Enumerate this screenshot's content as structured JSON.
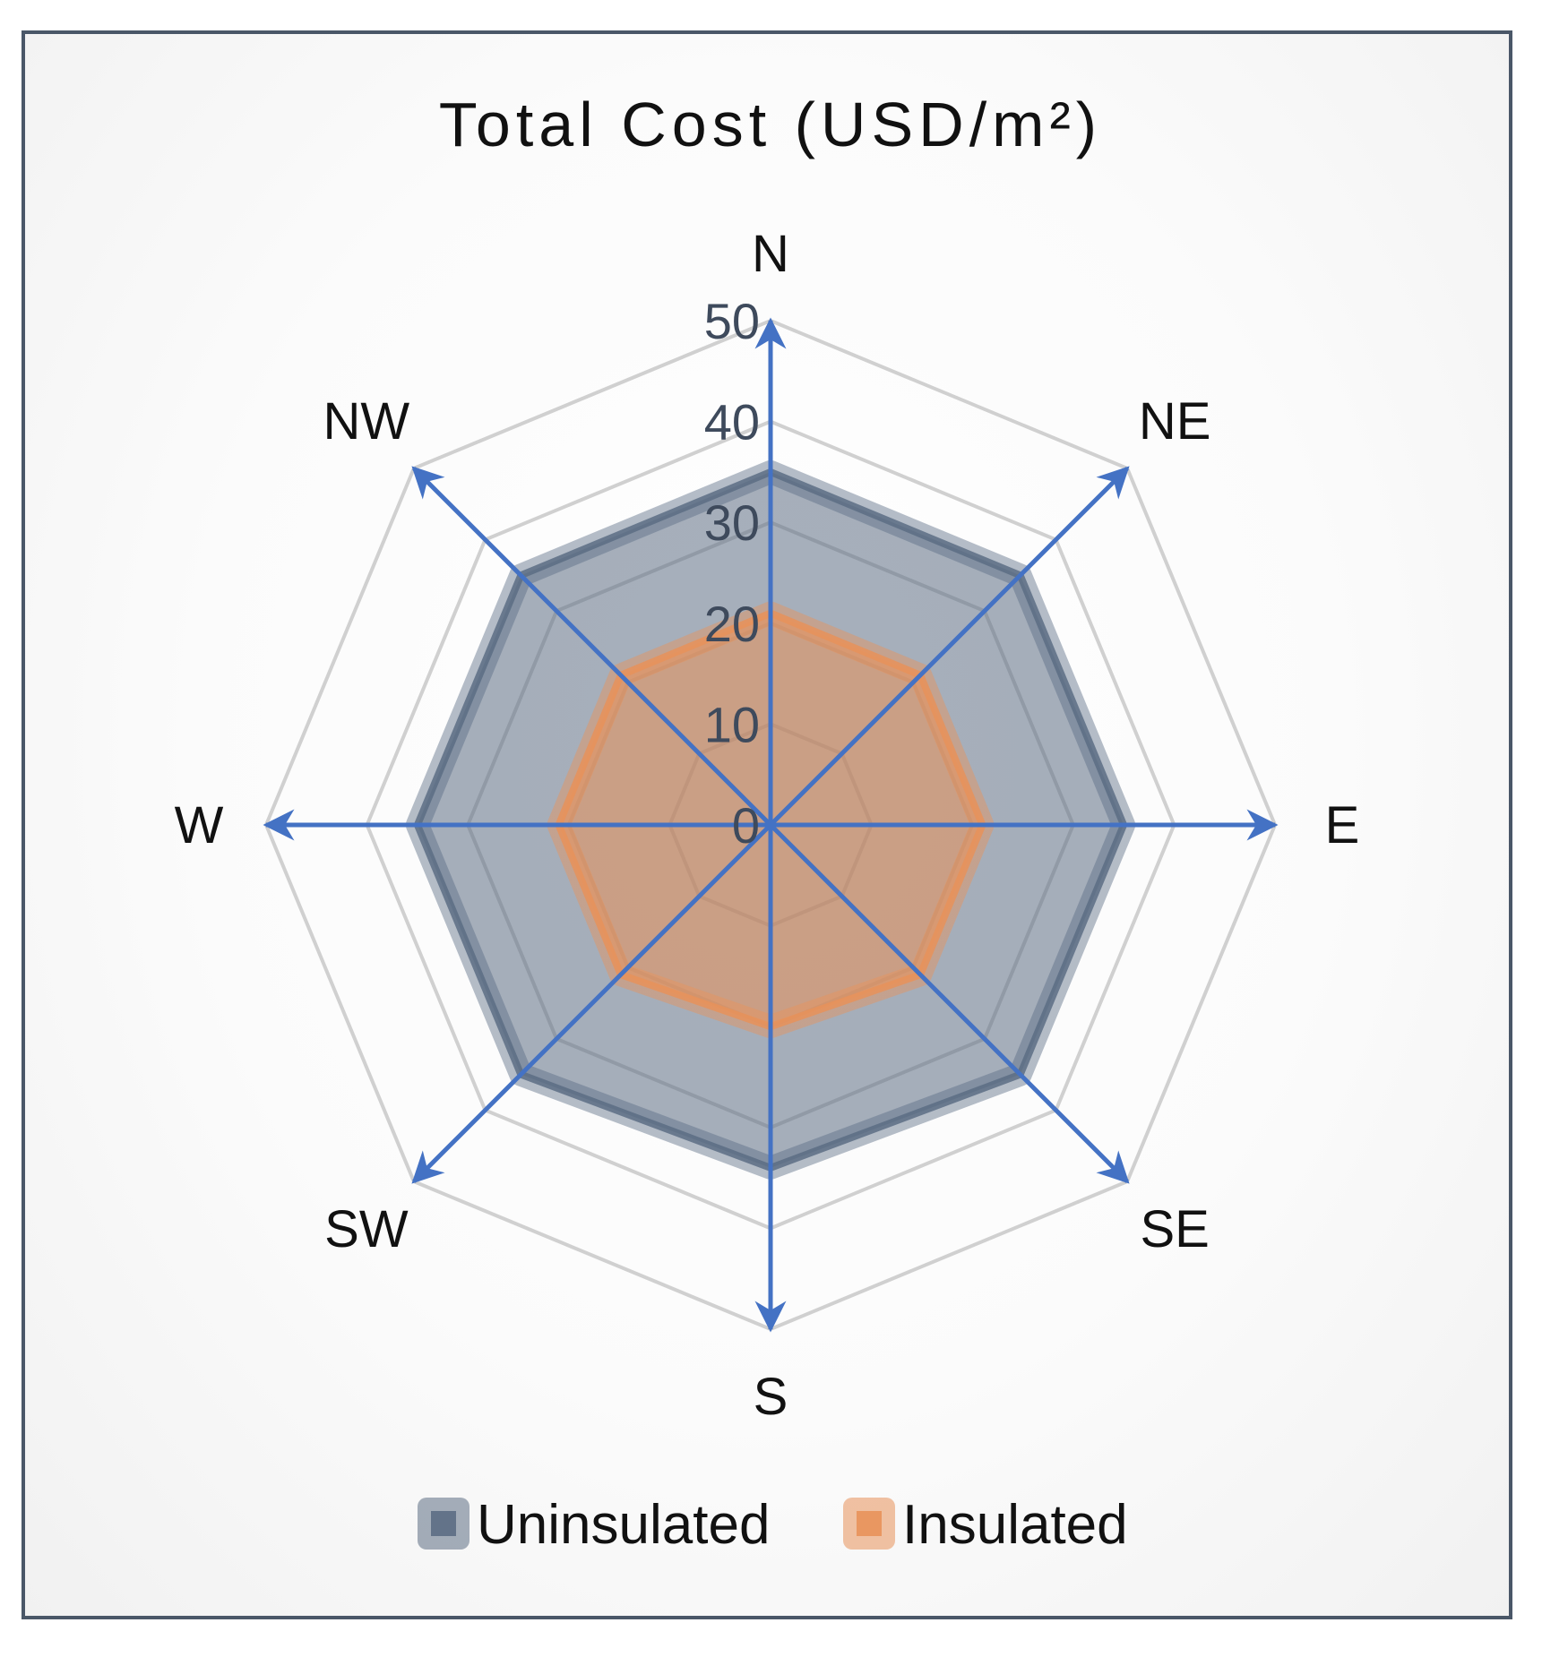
{
  "chart_data": {
    "type": "radar",
    "title": "Total Cost (USD/m²)",
    "categories": [
      "N",
      "NE",
      "E",
      "SE",
      "S",
      "SW",
      "W",
      "NW"
    ],
    "axis_range": [
      0,
      50
    ],
    "ticks": [
      "0",
      "10",
      "20",
      "30",
      "40",
      "50"
    ],
    "series": [
      {
        "name": "Uninsulated",
        "values": [
          35,
          35,
          35,
          35,
          34,
          35,
          35,
          35
        ],
        "color": "#5c6d84"
      },
      {
        "name": "Insulated",
        "values": [
          21,
          21,
          21,
          21,
          20,
          21,
          21,
          21
        ],
        "color": "#e8925a"
      }
    ],
    "legend_position": "bottom",
    "grid": true,
    "colors": {
      "grid": "#d0d0d0",
      "arrow": "#4472c4",
      "frame": "#4a5768"
    }
  }
}
